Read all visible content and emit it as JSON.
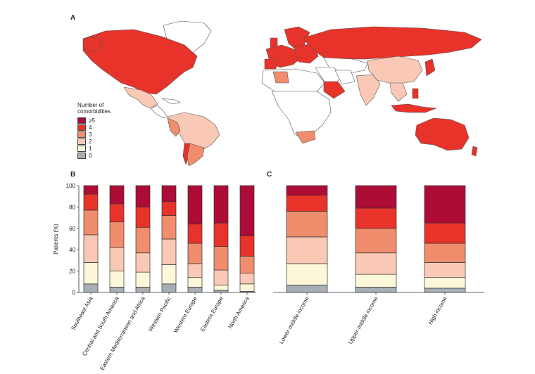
{
  "panels": {
    "a": "A",
    "b": "B",
    "c": "C"
  },
  "colors": {
    "c0": "#a7aeb5",
    "c1": "#fdf7d9",
    "c2": "#fac9b5",
    "c3": "#ef8d6c",
    "c4": "#e8332b",
    "c5": "#ad0c36"
  },
  "legend": {
    "title_line1": "Number of",
    "title_line2": "comorbidities",
    "items": [
      "≥5",
      "4",
      "3",
      "2",
      "1",
      "0"
    ]
  },
  "chart_data": [
    {
      "type": "bar",
      "stacked": true,
      "panel": "B",
      "ylabel": "Patients (%)",
      "ylim": [
        0,
        100
      ],
      "yticks": [
        "0",
        "20",
        "40",
        "60",
        "80",
        "100"
      ],
      "categories": [
        "Southeast Asia",
        "Central and South America",
        "Eastern Mediterranean and Africa",
        "Western Pacific",
        "Western Europe",
        "Eastern Europe",
        "North America"
      ],
      "series": [
        {
          "name": "0",
          "values": [
            8,
            5,
            5,
            8,
            5,
            2,
            1
          ]
        },
        {
          "name": "1",
          "values": [
            20,
            15,
            14,
            18,
            9,
            5,
            7
          ]
        },
        {
          "name": "2",
          "values": [
            26,
            22,
            18,
            24,
            13,
            14,
            10
          ]
        },
        {
          "name": "3",
          "values": [
            23,
            24,
            24,
            22,
            19,
            22,
            16
          ]
        },
        {
          "name": "4",
          "values": [
            15,
            17,
            19,
            13,
            18,
            22,
            19
          ]
        },
        {
          "name": "≥5",
          "values": [
            8,
            17,
            20,
            15,
            36,
            35,
            47
          ]
        }
      ]
    },
    {
      "type": "bar",
      "stacked": true,
      "panel": "C",
      "ylim": [
        0,
        100
      ],
      "categories": [
        "Lower-middle income",
        "Upper-middle income",
        "High income"
      ],
      "series": [
        {
          "name": "0",
          "values": [
            7,
            5,
            4
          ]
        },
        {
          "name": "1",
          "values": [
            20,
            12,
            10
          ]
        },
        {
          "name": "2",
          "values": [
            25,
            20,
            14
          ]
        },
        {
          "name": "3",
          "values": [
            24,
            23,
            18
          ]
        },
        {
          "name": "4",
          "values": [
            15,
            19,
            19
          ]
        },
        {
          "name": "≥5",
          "values": [
            9,
            21,
            35
          ]
        }
      ]
    }
  ]
}
